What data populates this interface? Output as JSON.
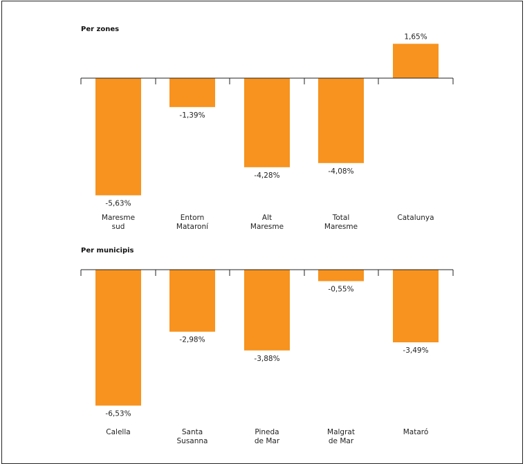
{
  "colors": {
    "bar": "#F7931E",
    "axis": "#222222",
    "frame": "#222222"
  },
  "chart_data": [
    {
      "type": "bar",
      "title": "Per zones",
      "categories": [
        "Maresme\nsud",
        "Entorn\nMataroní",
        "Alt\nMaresme",
        "Total\nMaresme",
        "Catalunya"
      ],
      "values": [
        -5.63,
        -1.39,
        -4.28,
        -4.08,
        1.65
      ],
      "value_labels": [
        "-5,63%",
        "-1,39%",
        "-4,28%",
        "-4,08%",
        "1,65%"
      ],
      "ylim": [
        -7,
        2
      ]
    },
    {
      "type": "bar",
      "title": "Per municipis",
      "categories": [
        "Calella",
        "Santa\nSusanna",
        "Pineda\nde Mar",
        "Malgrat\nde Mar",
        "Mataró"
      ],
      "values": [
        -6.53,
        -2.98,
        -3.88,
        -0.55,
        -3.49
      ],
      "value_labels": [
        "-6,53%",
        "-2,98%",
        "-3,88%",
        "-0,55%",
        "-3,49%"
      ],
      "ylim": [
        -7,
        2
      ]
    }
  ]
}
